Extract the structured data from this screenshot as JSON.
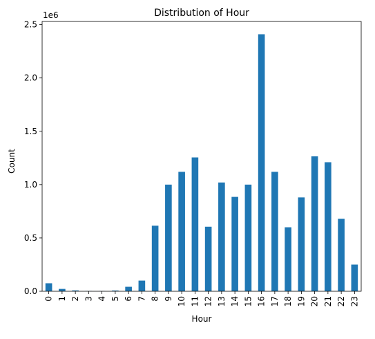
{
  "chart_data": {
    "type": "bar",
    "title": "Distribution of Hour",
    "xlabel": "Hour",
    "ylabel": "Count",
    "offset_label": "1e6",
    "categories": [
      "0",
      "1",
      "2",
      "3",
      "4",
      "5",
      "6",
      "7",
      "8",
      "9",
      "10",
      "11",
      "12",
      "13",
      "14",
      "15",
      "16",
      "17",
      "18",
      "19",
      "20",
      "21",
      "22",
      "23"
    ],
    "values": [
      75000,
      22000,
      8000,
      3000,
      2000,
      7000,
      42000,
      100000,
      615000,
      1000000,
      1120000,
      1255000,
      605000,
      1020000,
      885000,
      1000000,
      2410000,
      1120000,
      600000,
      880000,
      1265000,
      1210000,
      680000,
      250000
    ],
    "ylim": [
      0,
      2530000
    ],
    "yticks": [
      0,
      500000,
      1000000,
      1500000,
      2000000,
      2500000
    ],
    "ytick_labels": [
      "0.0",
      "0.5",
      "1.0",
      "1.5",
      "2.0",
      "2.5"
    ],
    "bar_color": "#1f77b4",
    "grid": false,
    "legend": "none"
  }
}
